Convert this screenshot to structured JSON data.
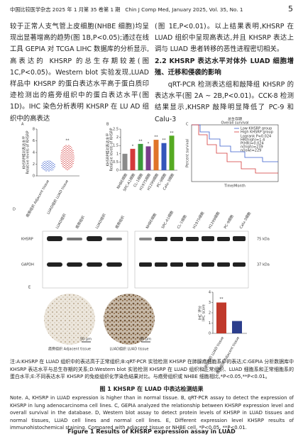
{
  "header": {
    "journal": "中国比较医学杂志 2025 年 1 月第 35 卷第 1 期",
    "journal_en": "Chin J Comp Med, January 2025, Vol. 35, No. 1",
    "page": "5"
  },
  "body": {
    "left": "较于正常人支气管上皮细胞(NHBE 细胞)均呈现出显著增高的趋势(图 1B,P<0.05);通过在线工具 GEPIA 对 TCGA LIHC 数据库的分析显示,高表达的 KHSRP 的总生存期较差(图 1C,P<0.05)。Western blot 实验发现,LUAD 样品中 KHSRP 的蛋白表达水平高于蛋白质印迹检测出的癌旁组织中的蛋白表达水平(图 1D)。IHC 染色分析表明 KHSRP 在 LU AD 组织中的高表达",
    "right_1": "(图 1E,P<0.01)。以上结果表明,KHSRP 在 LUAD 组织中呈现高表达,并且 KHSRP 表达上调与 LUAD 患者转移的恶性进程密切相关。",
    "section": "2.2 KHSRP 表达水平对体外 LUAD 细胞增殖、迁移和侵袭的影响",
    "right_2": "qRT-PCR 检测表达组和敲降组 KHSRP 的表达水平(图 2A ~ 2B,P<0.01)。CCK-8 检测结果显示,KHSRP 敲降明显降低了 PC-9 和 Calu-3"
  },
  "figure": {
    "A": {
      "label": "A",
      "ylabel": "KHSRP相对表达水平",
      "ylabel_en": "Relative levels of KHSRP",
      "ylim": [
        0,
        8
      ],
      "yticks": [
        0,
        2,
        4,
        6,
        8
      ],
      "categories": [
        "癌旁组织 Adjacent tissue",
        "LUAD组织 LUAD tissue"
      ],
      "significance": "**"
    },
    "B": {
      "label": "B",
      "ylabel": "KHSRP相对表达水平",
      "ylabel_en": "Relative levels of KHSRP",
      "ylim": [
        0,
        2.5
      ],
      "yticks": [
        0,
        0.5,
        1,
        1.5,
        2,
        2.5
      ],
      "categories": [
        "NHBE细胞",
        "SPC-A1细胞",
        "CL-1细胞",
        "H1975细胞",
        "H1299细胞",
        "PC-9细胞",
        "Calu-3细胞"
      ],
      "values": [
        1,
        1.3,
        1.6,
        1.45,
        1.85,
        1.65,
        2.1
      ],
      "colors": [
        "#8a8a8a",
        "#d43a3a",
        "#3a9a3a",
        "#7a3d8c",
        "#e0742a",
        "#3355bb",
        "#55aa22"
      ],
      "significance": [
        null,
        "*",
        "**",
        "*",
        "**",
        "**",
        "**"
      ]
    },
    "C": {
      "label": "C",
      "title": "总生存期",
      "title_en": "Overall survival",
      "legend": [
        "Low KHSRP group",
        "High KHSRP group"
      ],
      "colors": [
        "#3a5fcd",
        "#d43a3a"
      ],
      "stats": [
        "Logrank P=0.024",
        "HR(high)=1.4",
        "P(HR)=0.024",
        "n(high)=239",
        "n(low)=229"
      ],
      "ylabel": "Percent survival",
      "xlabel": "Time/Month"
    },
    "D": {
      "label": "D",
      "tissues": [
        "LUAD组织",
        "癌旁组织",
        "LUAD组织",
        "癌旁组织"
      ],
      "cells": [
        "NHBE细胞",
        "SPC-A1细胞",
        "CL-1细胞",
        "H1975细胞",
        "H1299细胞",
        "PC-9细胞",
        "Calu-3细胞"
      ],
      "rows": [
        "KHSRP",
        "GAPDH"
      ],
      "sizes": [
        "75 kDa",
        "37 kDa"
      ]
    },
    "E": {
      "label": "E",
      "images": [
        "癌旁组织 Adjacent tissue",
        "LUAD组织 LUAD tissue"
      ],
      "scale": "50 μm",
      "ylabel": "IHC 评分",
      "ylabel_en": "IHC score",
      "ylim": [
        0,
        4
      ],
      "yticks": [
        0,
        1,
        2,
        3,
        4
      ],
      "categories": [
        "LUAD组织 LUAD tissue",
        "癌旁组织 Adjacent tissue"
      ],
      "values": [
        3,
        1.2
      ],
      "colors": [
        "#c0392b",
        "#2c3e8c"
      ],
      "significance": "**"
    }
  },
  "caption": {
    "note_cn": "注:A:KHSRP 在 LUAD 组织中的表达高于正常组织;B:qRT-PCR 实验检测 KHSRP 在肺腺癌细胞系中的表达;C:GEPIA 分析数据库中 KHSRP 表达水平与总生存期的关系;D:Western blot 实验检测 KHSRP 在 LUAD 组织和正常组织、LUAD 细胞系和正常细胞系的蛋白水平;E:不同表达水平 KHSRP 的免疫组织化学染色结果对比。与癌旁组织或 NHBE 细胞相比,*P<0.05,**P<0.01。",
    "title_cn": "图 1  KHSRP 在 LUAD 中表达检测结果",
    "note_en": "Note. A, KHSRP in LUAD expression is higher than in normal tissue. B, qRT-PCR assay to detect the expression of KHSRP in lung adenocarcinoma cell lines. C, GEPIA analyzed the relationship between KHSRP expression level and overall survival in the database. D, Western blot assay to detect protein levels of KHSRP in LUAD tissues and normal tissues, LUAD cell lines and normal cell lines. E, Different expression level KHSRP results of immunohistochemical staining. Compared with adjacent tissue or NHBE cell, *P<0.05, **P<0.01.",
    "title_en": "Figure 1  Results of KHSRP expression assay in LUAD"
  }
}
